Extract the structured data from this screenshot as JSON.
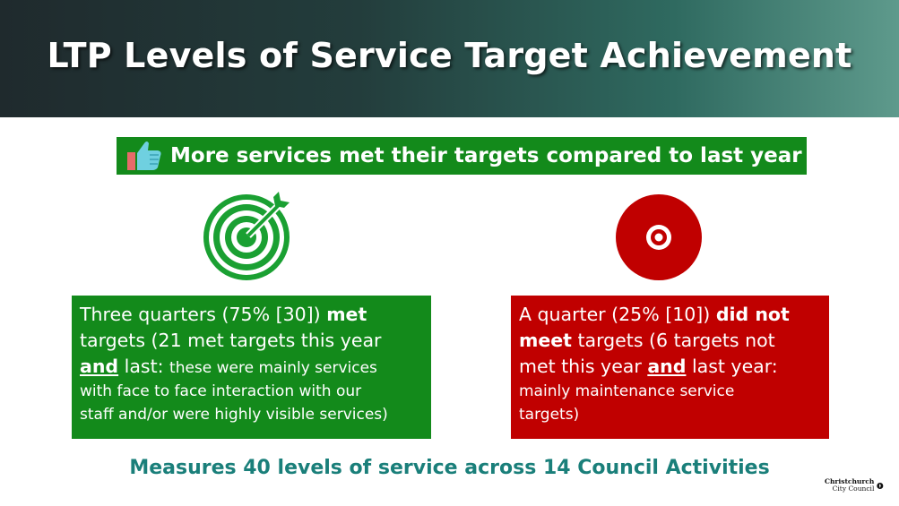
{
  "header": {
    "title": "LTP Levels of Service Target Achievement"
  },
  "banner": {
    "icon": "thumbs-up-icon",
    "text": "More services met their targets compared to last year"
  },
  "met": {
    "icon": "target-hit-icon",
    "line1_a": "Three quarters (75% [30]) ",
    "line1_b": "met",
    "line2": "targets (21 met targets this year",
    "line3_a": "and",
    "line3_b": " last: ",
    "line3_c": "these were mainly services",
    "line4": "with face to face interaction with our",
    "line5": "staff and/or were highly visible services)"
  },
  "not_met": {
    "icon": "target-miss-icon",
    "line1_a": "A quarter (25% [10]) ",
    "line1_b": "did not",
    "line2_a": "meet",
    "line2_b": " targets (6 targets not",
    "line3_a": "met this year ",
    "line3_b": "and",
    "line3_c": " last year:",
    "line4": "mainly maintenance service",
    "line5": "targets)"
  },
  "footer": {
    "text": "Measures 40 levels of service across 14 Council Activities"
  },
  "logo": {
    "line1": "Christchurch",
    "line2": "City Council"
  },
  "colors": {
    "green": "#138a1b",
    "red": "#c00000",
    "teal": "#1a7f7a"
  }
}
